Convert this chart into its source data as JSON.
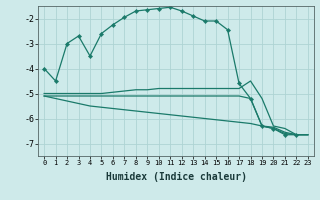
{
  "xlabel": "Humidex (Indice chaleur)",
  "ylabel": "",
  "background_color": "#ceeaea",
  "grid_color": "#aed4d4",
  "line_color": "#1a7a6a",
  "xlim": [
    -0.5,
    23.5
  ],
  "ylim": [
    -7.5,
    -1.5
  ],
  "yticks": [
    -7,
    -6,
    -5,
    -4,
    -3,
    -2
  ],
  "xticks": [
    0,
    1,
    2,
    3,
    4,
    5,
    6,
    7,
    8,
    9,
    10,
    11,
    12,
    13,
    14,
    15,
    16,
    17,
    18,
    19,
    20,
    21,
    22,
    23
  ],
  "series": [
    {
      "x": [
        0,
        1,
        2,
        3,
        4,
        5,
        6,
        7,
        8,
        9,
        10,
        11,
        12,
        13,
        14,
        15,
        16,
        17,
        18,
        19,
        20,
        21,
        22,
        23
      ],
      "y": [
        -4.0,
        -4.5,
        -3.0,
        -2.7,
        -3.5,
        -2.6,
        -2.25,
        -1.95,
        -1.7,
        -1.65,
        -1.6,
        -1.55,
        -1.7,
        -1.9,
        -2.1,
        -2.1,
        -2.45,
        -4.6,
        -5.2,
        -6.3,
        -6.4,
        -6.65,
        -6.65,
        null
      ],
      "has_markers": true
    },
    {
      "x": [
        0,
        1,
        2,
        3,
        4,
        5,
        6,
        7,
        8,
        9,
        10,
        11,
        12,
        13,
        14,
        15,
        16,
        17,
        18,
        19,
        20,
        21,
        22,
        23
      ],
      "y": [
        -5.0,
        -5.0,
        -5.0,
        -5.0,
        -5.0,
        -5.0,
        -4.95,
        -4.9,
        -4.85,
        -4.85,
        -4.8,
        -4.8,
        -4.8,
        -4.8,
        -4.8,
        -4.8,
        -4.8,
        -4.8,
        -4.5,
        -5.2,
        -6.3,
        -6.4,
        -6.65,
        -6.65
      ],
      "has_markers": false
    },
    {
      "x": [
        0,
        1,
        2,
        3,
        4,
        5,
        6,
        7,
        8,
        9,
        10,
        11,
        12,
        13,
        14,
        15,
        16,
        17,
        18,
        19,
        20,
        21,
        22,
        23
      ],
      "y": [
        -5.1,
        -5.1,
        -5.1,
        -5.1,
        -5.1,
        -5.1,
        -5.1,
        -5.1,
        -5.1,
        -5.1,
        -5.1,
        -5.1,
        -5.1,
        -5.1,
        -5.1,
        -5.1,
        -5.1,
        -5.1,
        -5.2,
        -6.3,
        -6.35,
        -6.55,
        -6.65,
        -6.65
      ],
      "has_markers": false
    },
    {
      "x": [
        0,
        1,
        2,
        3,
        4,
        5,
        6,
        7,
        8,
        9,
        10,
        11,
        12,
        13,
        14,
        15,
        16,
        17,
        18,
        19,
        20,
        21,
        22,
        23
      ],
      "y": [
        -5.1,
        -5.2,
        -5.3,
        -5.4,
        -5.5,
        -5.55,
        -5.6,
        -5.65,
        -5.7,
        -5.75,
        -5.8,
        -5.85,
        -5.9,
        -5.95,
        -6.0,
        -6.05,
        -6.1,
        -6.15,
        -6.2,
        -6.3,
        -6.4,
        -6.6,
        -6.65,
        -6.65
      ],
      "has_markers": false
    }
  ]
}
